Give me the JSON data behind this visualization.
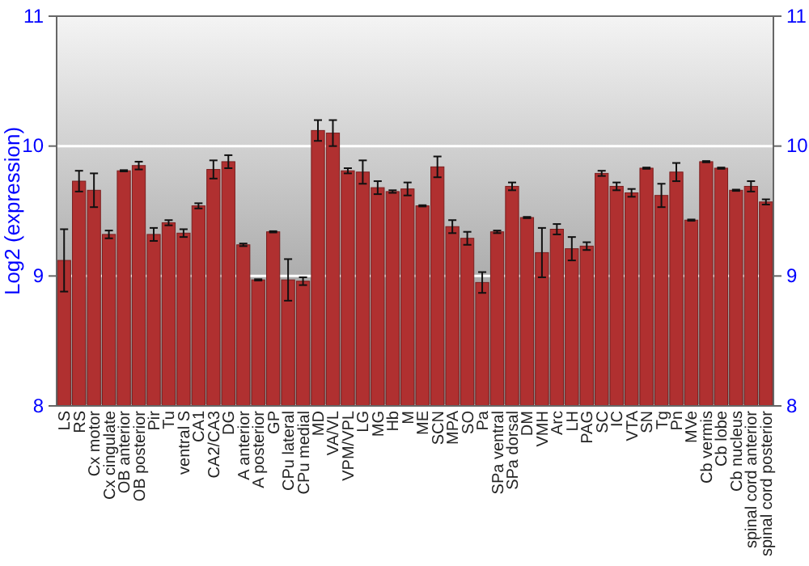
{
  "chart_data": {
    "type": "bar",
    "ylabel": "Log2 (expression)",
    "categories": [
      "LS",
      "RS",
      "Cx motor",
      "Cx cingulate",
      "OB anterior",
      "OB posterior",
      "Pir",
      "Tu",
      "ventral S",
      "CA1",
      "CA2/CA3",
      "DG",
      "A anterior",
      "A posterior",
      "GP",
      "CPu lateral",
      "CPu medial",
      "MD",
      "VA/VL",
      "VPM/VPL",
      "LG",
      "MG",
      "Hb",
      "M",
      "ME",
      "SCN",
      "MPA",
      "SO",
      "Pa",
      "SPa ventral",
      "SPa dorsal",
      "DM",
      "VMH",
      "Arc",
      "LH",
      "PAG",
      "SC",
      "IC",
      "VTA",
      "SN",
      "Tg",
      "Pn",
      "MVe",
      "Cb vermis",
      "Cb lobe",
      "Cb nucleus",
      "spinal cord anterior",
      "spinal cord posterior"
    ],
    "values": [
      9.12,
      9.73,
      9.66,
      9.32,
      9.81,
      9.85,
      9.32,
      9.41,
      9.33,
      9.54,
      9.82,
      9.88,
      9.24,
      8.97,
      9.34,
      8.97,
      8.96,
      10.12,
      10.1,
      9.81,
      9.8,
      9.68,
      9.65,
      9.67,
      9.54,
      9.84,
      9.38,
      9.29,
      8.95,
      9.34,
      9.69,
      9.45,
      9.18,
      9.36,
      9.21,
      9.23,
      9.79,
      9.69,
      9.64,
      9.83,
      9.62,
      9.8,
      9.43,
      9.88,
      9.83,
      9.66,
      9.69,
      9.57
    ],
    "errors": [
      0.24,
      0.08,
      0.13,
      0.03,
      0.005,
      0.03,
      0.05,
      0.02,
      0.03,
      0.02,
      0.07,
      0.05,
      0.01,
      0.005,
      0.005,
      0.16,
      0.03,
      0.08,
      0.1,
      0.02,
      0.09,
      0.05,
      0.01,
      0.05,
      0.005,
      0.08,
      0.05,
      0.05,
      0.08,
      0.01,
      0.03,
      0.005,
      0.19,
      0.04,
      0.09,
      0.03,
      0.02,
      0.03,
      0.03,
      0.005,
      0.09,
      0.07,
      0.005,
      0.005,
      0.005,
      0.005,
      0.04,
      0.02
    ],
    "color": "#b03030",
    "ylim": [
      8,
      11
    ],
    "yticks": [
      8,
      9,
      10,
      11
    ],
    "y2lim": [
      8,
      11
    ],
    "y2ticks": [
      8,
      9,
      10,
      11
    ],
    "grid": "y"
  }
}
